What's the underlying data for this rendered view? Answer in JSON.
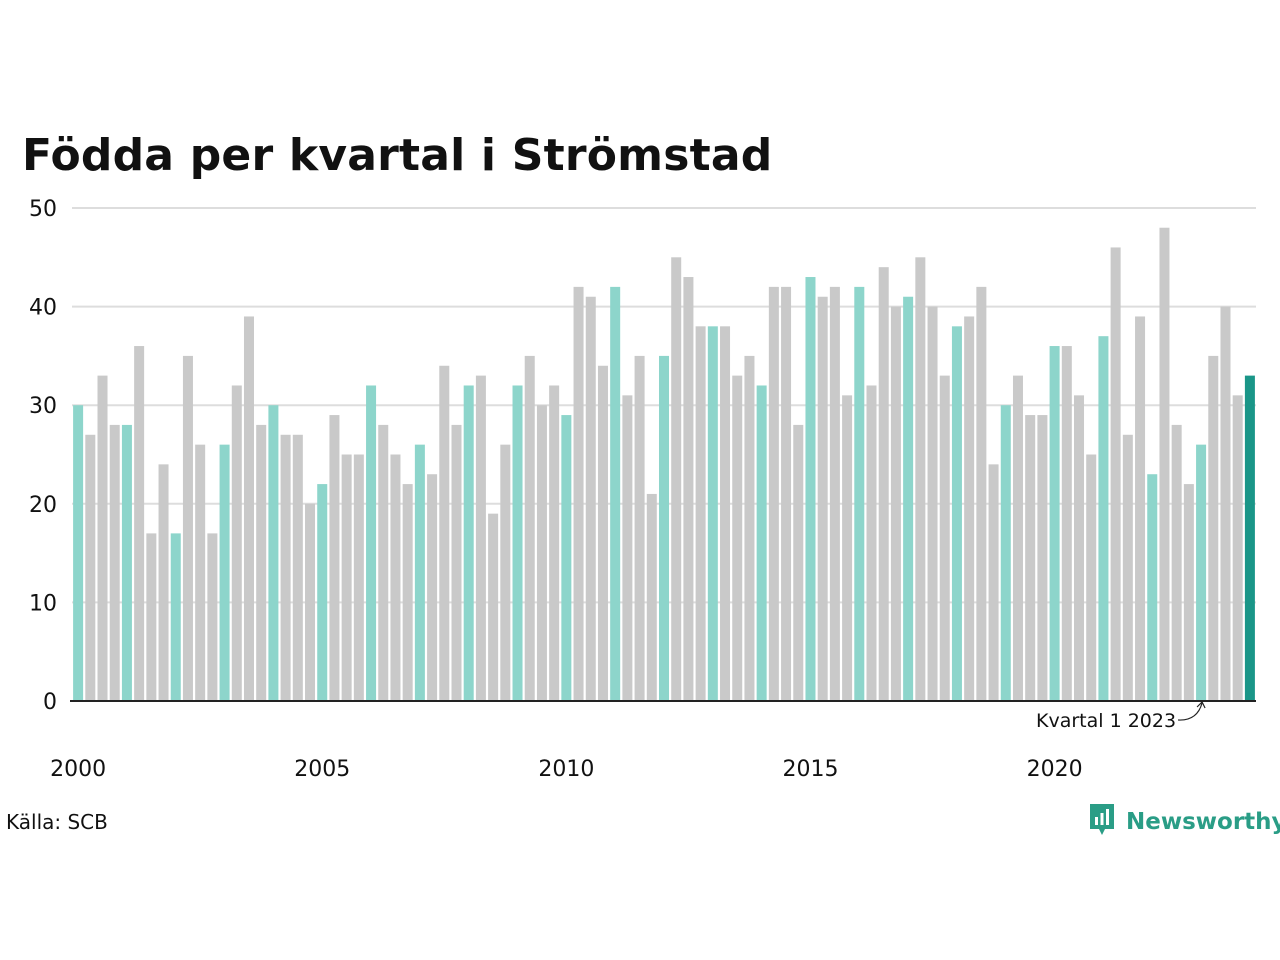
{
  "title": "Födda per kvartal i Strömstad",
  "source": "Källa: SCB",
  "brand": "Newsworthy",
  "colors": {
    "q1": "#8dd5cb",
    "other": "#c9c9c9",
    "latest": "#1a9688",
    "grid": "#dddddd",
    "axis": "#222222",
    "brand": "#2a9d86"
  },
  "chart_data": {
    "type": "bar",
    "title": "Födda per kvartal i Strömstad",
    "xlabel": "",
    "ylabel": "",
    "ylim": [
      0,
      50
    ],
    "y_ticks": [
      0,
      10,
      20,
      30,
      40,
      50
    ],
    "x_ticks": [
      "2000",
      "2005",
      "2010",
      "2015",
      "2020"
    ],
    "grid": true,
    "highlight": "Kvartal 1 (teal), senaste kvartalet (mörk teal)",
    "annotation": {
      "text": "Kvartal 1 2023",
      "target_year": 2023,
      "target_quarter": 1
    },
    "years": [
      2000,
      2001,
      2002,
      2003,
      2004,
      2005,
      2006,
      2007,
      2008,
      2009,
      2010,
      2011,
      2012,
      2013,
      2014,
      2015,
      2016,
      2017,
      2018,
      2019,
      2020,
      2021,
      2022,
      2023,
      2024
    ],
    "values": [
      30,
      27,
      33,
      28,
      28,
      36,
      17,
      24,
      17,
      35,
      26,
      17,
      26,
      32,
      39,
      28,
      30,
      27,
      27,
      20,
      22,
      29,
      25,
      25,
      32,
      28,
      25,
      22,
      26,
      23,
      34,
      28,
      32,
      33,
      19,
      26,
      32,
      35,
      30,
      32,
      29,
      42,
      41,
      34,
      42,
      31,
      35,
      21,
      35,
      45,
      43,
      38,
      38,
      38,
      33,
      35,
      32,
      42,
      42,
      28,
      43,
      41,
      42,
      31,
      42,
      32,
      44,
      40,
      41,
      45,
      40,
      33,
      38,
      39,
      42,
      24,
      30,
      33,
      29,
      29,
      36,
      36,
      31,
      25,
      37,
      46,
      27,
      39,
      23,
      48,
      28,
      22,
      26,
      35,
      40,
      31,
      33
    ]
  }
}
